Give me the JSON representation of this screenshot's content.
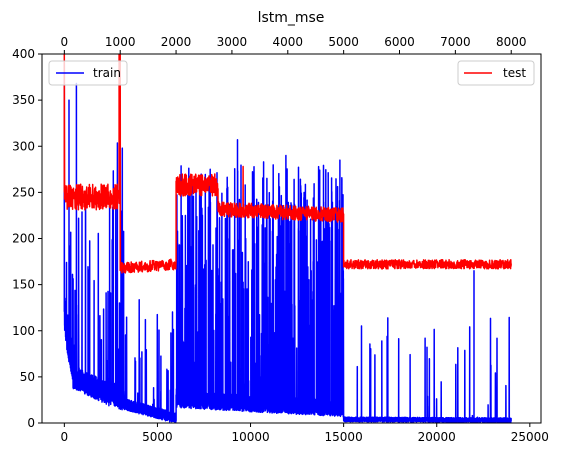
{
  "chart_data": {
    "type": "line",
    "title": "lstm_mse",
    "axes": {
      "bottom": {
        "range": [
          -1200,
          25600
        ],
        "ticks": [
          0,
          5000,
          10000,
          15000,
          20000,
          25000
        ],
        "tick_labels": [
          "0",
          "5000",
          "10000",
          "15000",
          "20000",
          "25000"
        ]
      },
      "top": {
        "range": [
          -400,
          8533
        ],
        "ticks": [
          0,
          1000,
          2000,
          3000,
          4000,
          5000,
          6000,
          7000,
          8000
        ],
        "tick_labels": [
          "0",
          "1000",
          "2000",
          "3000",
          "4000",
          "5000",
          "6000",
          "7000",
          "8000"
        ]
      },
      "left": {
        "range": [
          0,
          400
        ],
        "ticks": [
          0,
          50,
          100,
          150,
          200,
          250,
          300,
          350,
          400
        ],
        "tick_labels": [
          "0",
          "50",
          "100",
          "150",
          "200",
          "250",
          "300",
          "350",
          "400"
        ]
      }
    },
    "grid": false,
    "series": [
      {
        "name": "train",
        "color": "#0000ff",
        "x_axis": "bottom",
        "legend_position": "upper-left",
        "segments": [
          {
            "x0": 0,
            "x1": 500,
            "base_start": 110,
            "base_end": 45,
            "noise": 45,
            "spike_rate": 0.08,
            "spike_max": 300
          },
          {
            "x0": 500,
            "x1": 2500,
            "base_start": 45,
            "base_end": 25,
            "noise": 25,
            "spike_rate": 0.05,
            "spike_max": 240
          },
          {
            "x0": 2500,
            "x1": 3200,
            "base_start": 28,
            "base_end": 20,
            "noise": 25,
            "spike_rate": 0.1,
            "spike_max": 320
          },
          {
            "x0": 3200,
            "x1": 6000,
            "base_start": 18,
            "base_end": 3,
            "noise": 12,
            "spike_rate": 0.03,
            "spike_max": 140
          },
          {
            "x0": 6000,
            "x1": 15000,
            "base_start": 22,
            "base_end": 12,
            "noise": 18,
            "spike_rate": 0.18,
            "spike_max": 280
          },
          {
            "x0": 15000,
            "x1": 24000,
            "base_start": 3,
            "base_end": 2,
            "noise": 5,
            "spike_rate": 0.015,
            "spike_max": 120
          }
        ],
        "peaks": [
          [
            0,
            390
          ],
          [
            250,
            350
          ],
          [
            650,
            368
          ],
          [
            9300,
            307
          ],
          [
            10700,
            283
          ],
          [
            11900,
            290
          ],
          [
            14800,
            285
          ],
          [
            22000,
            165
          ]
        ]
      },
      {
        "name": "test",
        "color": "#ff0000",
        "x_axis": "top",
        "legend_position": "upper-right",
        "segments": [
          {
            "x0": 0,
            "x1": 1000,
            "base_start": 245,
            "base_end": 245,
            "noise": 14
          },
          {
            "x0": 1000,
            "x1": 2000,
            "base_start": 168,
            "base_end": 172,
            "noise": 6
          },
          {
            "x0": 2000,
            "x1": 2750,
            "base_start": 258,
            "base_end": 258,
            "noise": 12
          },
          {
            "x0": 2750,
            "x1": 5000,
            "base_start": 232,
            "base_end": 225,
            "noise": 8
          },
          {
            "x0": 5000,
            "x1": 8000,
            "base_start": 172,
            "base_end": 172,
            "noise": 5
          }
        ],
        "peaks": [
          [
            0,
            400
          ],
          [
            980,
            400
          ],
          [
            1000,
            400
          ],
          [
            3200,
            278
          ]
        ]
      }
    ]
  }
}
